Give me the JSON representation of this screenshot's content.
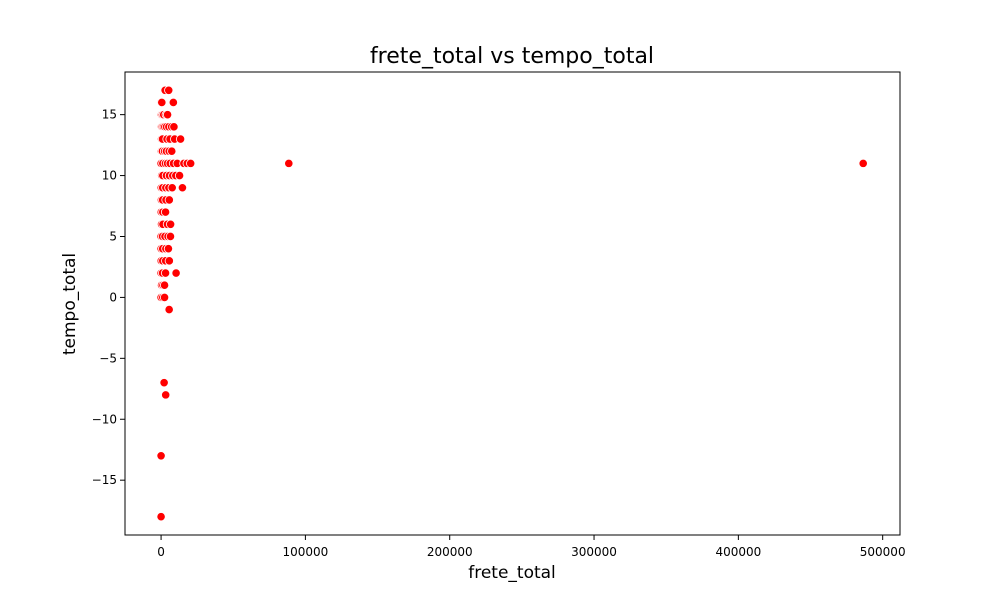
{
  "chart_data": {
    "type": "scatter",
    "title": "frete_total vs tempo_total",
    "xlabel": "frete_total",
    "ylabel": "tempo_total",
    "xlim": [
      -25000,
      512000
    ],
    "ylim": [
      -19.5,
      18.5
    ],
    "xticks": [
      0,
      100000,
      200000,
      300000,
      400000,
      500000
    ],
    "yticks": [
      -15,
      -10,
      -5,
      0,
      5,
      10,
      15
    ],
    "grid": false,
    "series": [
      {
        "color": "#ff0000",
        "edge_color": "#ffffff",
        "points": [
          {
            "x": 0,
            "y": 16
          },
          {
            "x": 500,
            "y": 16
          },
          {
            "x": 2800,
            "y": 17
          },
          {
            "x": 5300,
            "y": 17
          },
          {
            "x": 8500,
            "y": 16
          },
          {
            "x": 200,
            "y": 15
          },
          {
            "x": 900,
            "y": 15
          },
          {
            "x": 1800,
            "y": 15
          },
          {
            "x": 3600,
            "y": 15
          },
          {
            "x": 4500,
            "y": 15
          },
          {
            "x": 300,
            "y": 14
          },
          {
            "x": 900,
            "y": 14
          },
          {
            "x": 1700,
            "y": 14
          },
          {
            "x": 2600,
            "y": 14
          },
          {
            "x": 3800,
            "y": 14
          },
          {
            "x": 5400,
            "y": 14
          },
          {
            "x": 7300,
            "y": 14
          },
          {
            "x": 8900,
            "y": 14
          },
          {
            "x": 300,
            "y": 13
          },
          {
            "x": 1000,
            "y": 13
          },
          {
            "x": 4100,
            "y": 13
          },
          {
            "x": 6200,
            "y": 13
          },
          {
            "x": 9400,
            "y": 13
          },
          {
            "x": 13500,
            "y": 13
          },
          {
            "x": 200,
            "y": 12
          },
          {
            "x": 900,
            "y": 12
          },
          {
            "x": 2400,
            "y": 12
          },
          {
            "x": 3700,
            "y": 12
          },
          {
            "x": 5600,
            "y": 12
          },
          {
            "x": 7400,
            "y": 12
          },
          {
            "x": 0,
            "y": 11
          },
          {
            "x": 1200,
            "y": 11
          },
          {
            "x": 3000,
            "y": 11
          },
          {
            "x": 4500,
            "y": 11
          },
          {
            "x": 6300,
            "y": 11
          },
          {
            "x": 8600,
            "y": 11
          },
          {
            "x": 11200,
            "y": 11
          },
          {
            "x": 15800,
            "y": 11
          },
          {
            "x": 18100,
            "y": 11
          },
          {
            "x": 20500,
            "y": 11
          },
          {
            "x": 88500,
            "y": 11
          },
          {
            "x": 486500,
            "y": 11
          },
          {
            "x": 400,
            "y": 10
          },
          {
            "x": 1200,
            "y": 10
          },
          {
            "x": 3700,
            "y": 10
          },
          {
            "x": 5800,
            "y": 10
          },
          {
            "x": 8100,
            "y": 10
          },
          {
            "x": 10200,
            "y": 10
          },
          {
            "x": 12800,
            "y": 10
          },
          {
            "x": 100,
            "y": 9
          },
          {
            "x": 1100,
            "y": 9
          },
          {
            "x": 3300,
            "y": 9
          },
          {
            "x": 5400,
            "y": 9
          },
          {
            "x": 7700,
            "y": 9
          },
          {
            "x": 14800,
            "y": 9
          },
          {
            "x": 200,
            "y": 8
          },
          {
            "x": 1100,
            "y": 8
          },
          {
            "x": 3400,
            "y": 8
          },
          {
            "x": 5700,
            "y": 8
          },
          {
            "x": 100,
            "y": 7
          },
          {
            "x": 1200,
            "y": 7
          },
          {
            "x": 3100,
            "y": 7
          },
          {
            "x": 300,
            "y": 6
          },
          {
            "x": 1300,
            "y": 6
          },
          {
            "x": 4400,
            "y": 6
          },
          {
            "x": 6600,
            "y": 6
          },
          {
            "x": 0,
            "y": 5
          },
          {
            "x": 1000,
            "y": 5
          },
          {
            "x": 2700,
            "y": 5
          },
          {
            "x": 4800,
            "y": 5
          },
          {
            "x": 6500,
            "y": 5
          },
          {
            "x": 0,
            "y": 4
          },
          {
            "x": 1100,
            "y": 4
          },
          {
            "x": 3300,
            "y": 4
          },
          {
            "x": 5100,
            "y": 4
          },
          {
            "x": 100,
            "y": 3
          },
          {
            "x": 1200,
            "y": 3
          },
          {
            "x": 3200,
            "y": 3
          },
          {
            "x": 5700,
            "y": 3
          },
          {
            "x": 0,
            "y": 2
          },
          {
            "x": 1000,
            "y": 2
          },
          {
            "x": 3100,
            "y": 2
          },
          {
            "x": 10400,
            "y": 2
          },
          {
            "x": 300,
            "y": 1
          },
          {
            "x": 1300,
            "y": 1
          },
          {
            "x": 2400,
            "y": 1
          },
          {
            "x": 0,
            "y": 0
          },
          {
            "x": 1200,
            "y": 0
          },
          {
            "x": 2400,
            "y": 0
          },
          {
            "x": 5600,
            "y": -1
          },
          {
            "x": 2100,
            "y": -7
          },
          {
            "x": 3200,
            "y": -8
          },
          {
            "x": 0,
            "y": -13
          },
          {
            "x": 0,
            "y": -18
          }
        ]
      }
    ]
  }
}
